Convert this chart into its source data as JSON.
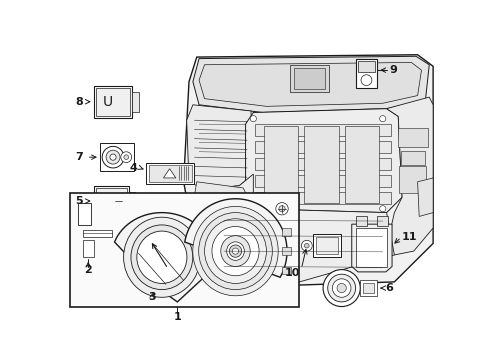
{
  "background_color": "#ffffff",
  "line_color": "#1a1a1a",
  "label_color": "#000000",
  "fig_width": 4.89,
  "fig_height": 3.6,
  "dpi": 100,
  "panel_fill": "#f8f8f8",
  "gauge_fill": "#f0f0f0"
}
